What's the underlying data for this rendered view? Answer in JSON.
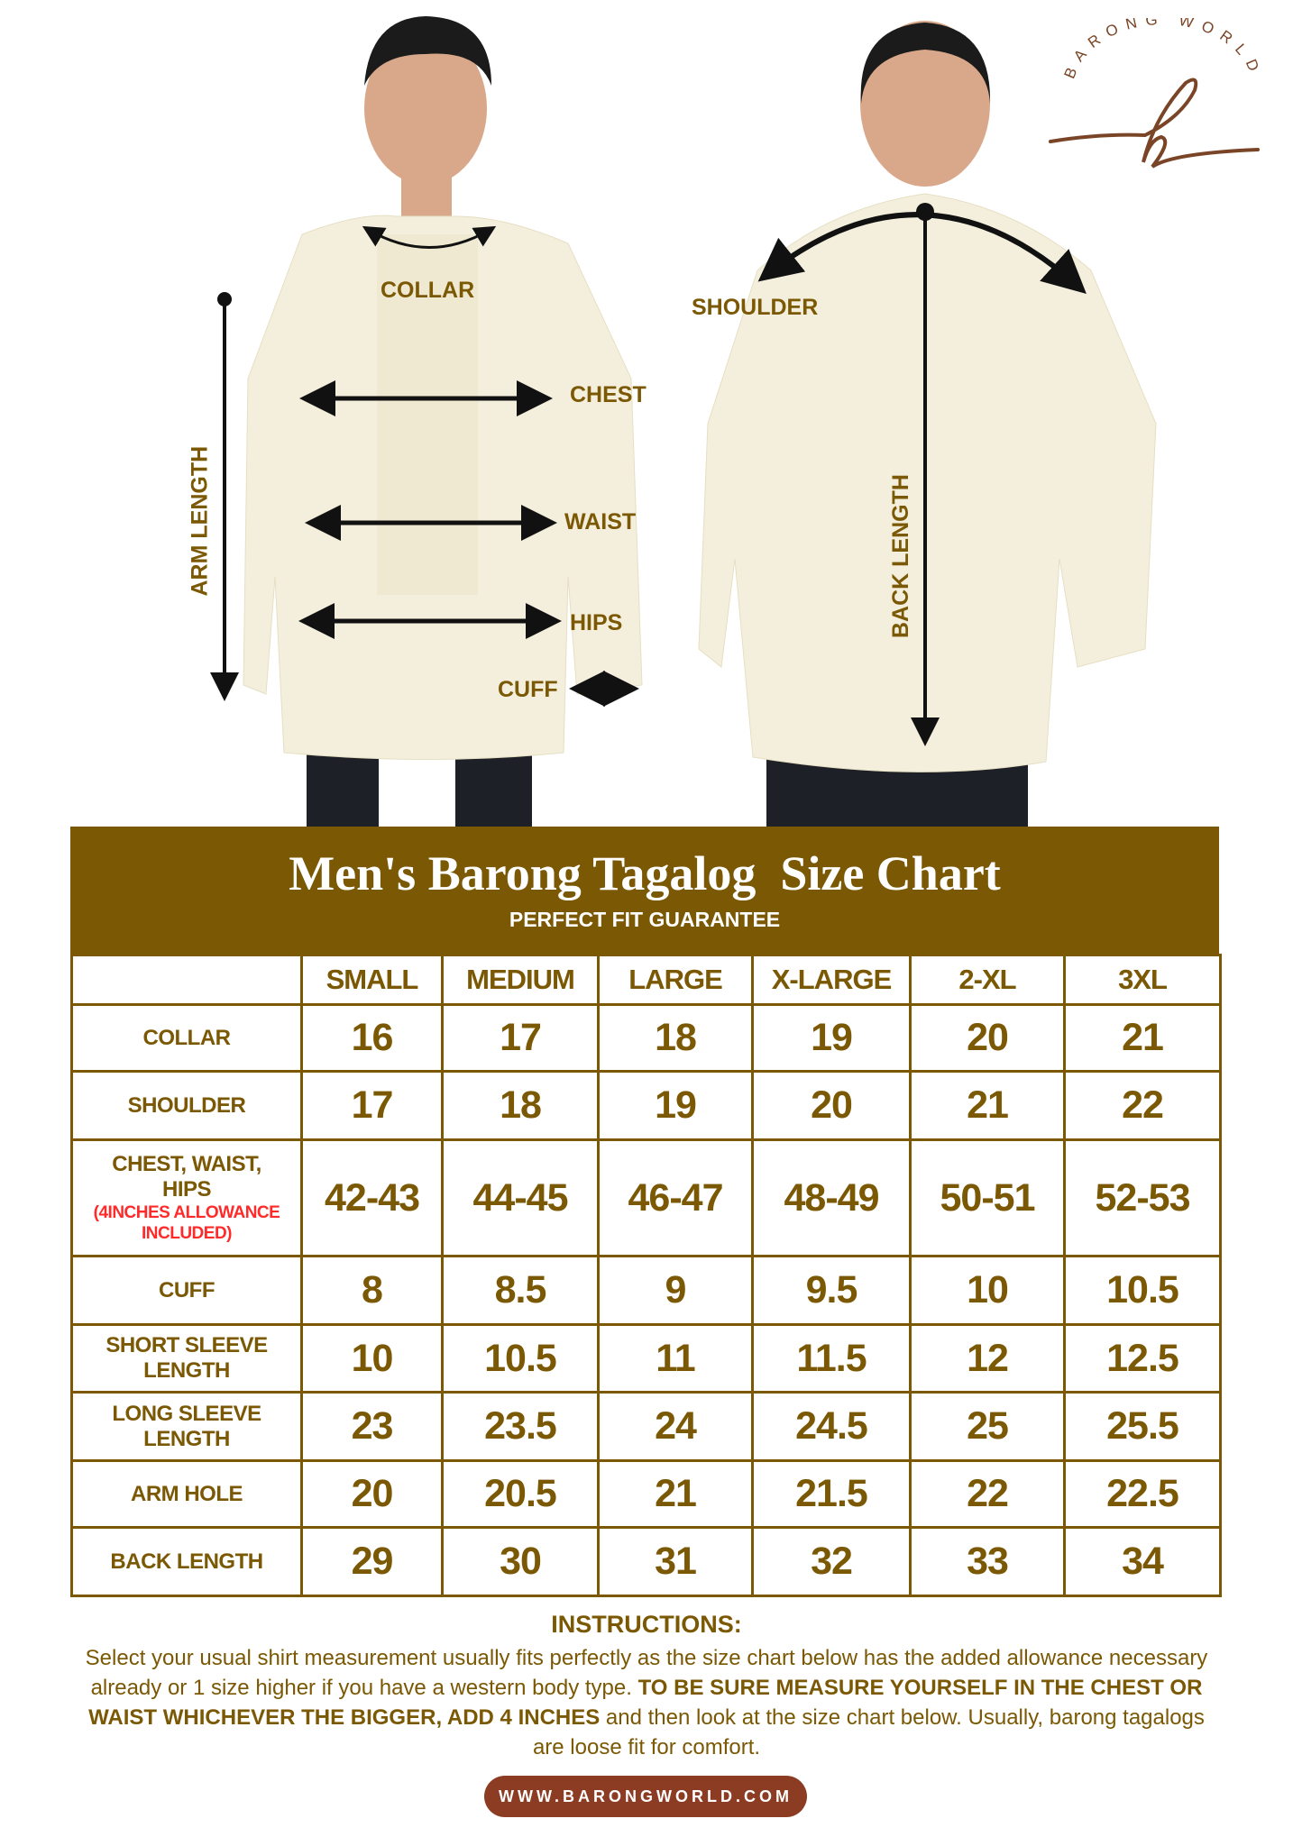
{
  "brand": {
    "logo_text": "BARONG WORLD",
    "logo_letter": "b",
    "color": "#8b3c22"
  },
  "photo_labels": {
    "collar": "COLLAR",
    "chest": "CHEST",
    "waist": "WAIST",
    "hips": "HIPS",
    "cuff": "CUFF",
    "arm_length": "ARM LENGTH",
    "shoulder": "SHOULDER",
    "back_length": "BACK LENGTH"
  },
  "chart": {
    "title": "Men's Barong Tagalog  Size Chart",
    "subtitle": "PERFECT FIT GUARANTEE",
    "sizes": [
      "SMALL",
      "MEDIUM",
      "LARGE",
      "X-LARGE",
      "2-XL",
      "3XL"
    ],
    "rows": [
      {
        "label": "COLLAR",
        "values": [
          "16",
          "17",
          "18",
          "19",
          "20",
          "21"
        ]
      },
      {
        "label": "SHOULDER",
        "values": [
          "17",
          "18",
          "19",
          "20",
          "21",
          "22"
        ]
      },
      {
        "label": "CHEST, WAIST, HIPS",
        "note": "(4INCHES ALLOWANCE INCLUDED)",
        "values": [
          "42-43",
          "44-45",
          "46-47",
          "48-49",
          "50-51",
          "52-53"
        ]
      },
      {
        "label": "CUFF",
        "values": [
          "8",
          "8.5",
          "9",
          "9.5",
          "10",
          "10.5"
        ]
      },
      {
        "label": "SHORT SLEEVE LENGTH",
        "values": [
          "10",
          "10.5",
          "11",
          "11.5",
          "12",
          "12.5"
        ]
      },
      {
        "label": "LONG SLEEVE LENGTH",
        "values": [
          "23",
          "23.5",
          "24",
          "24.5",
          "25",
          "25.5"
        ]
      },
      {
        "label": "ARM HOLE",
        "values": [
          "20",
          "20.5",
          "21",
          "21.5",
          "22",
          "22.5"
        ]
      },
      {
        "label": "BACK LENGTH",
        "values": [
          "29",
          "30",
          "31",
          "32",
          "33",
          "34"
        ]
      }
    ],
    "colors": {
      "primary": "#7b5804",
      "note": "#ff2a2a"
    }
  },
  "instructions": {
    "heading": "INSTRUCTIONS:",
    "text1": "Select your usual shirt measurement usually fits perfectly as the size chart below has the added allowance necessary already or 1 size higher if you have a western body type. ",
    "bold": "TO BE SURE MEASURE YOURSELF IN THE CHEST OR WAIST WHICHEVER THE BIGGER, ADD 4 INCHES",
    "text2": " and then look at the size chart below. Usually, barong tagalogs are loose fit for comfort."
  },
  "website": "WWW.BARONGWORLD.COM"
}
